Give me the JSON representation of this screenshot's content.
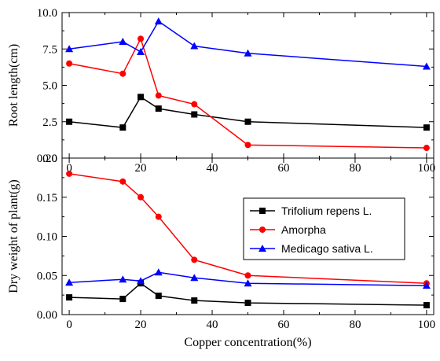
{
  "chart_data": [
    {
      "type": "line",
      "xlabel": "",
      "ylabel": "Root length(cm)",
      "xlim": [
        -2,
        102
      ],
      "ylim": [
        0,
        10
      ],
      "xticks": [
        0,
        20,
        40,
        60,
        80,
        100
      ],
      "yticks": [
        0.0,
        2.5,
        5.0,
        7.5,
        10.0
      ],
      "yticklabels": [
        "0.0",
        "2.5",
        "5.0",
        "7.5",
        "10.0"
      ],
      "xticklabels": [
        "0",
        "20",
        "40",
        "60",
        "80",
        "100"
      ],
      "x": [
        0,
        15,
        20,
        25,
        35,
        50,
        100
      ],
      "series": [
        {
          "name": "Trifolium repens L.",
          "color": "#000000",
          "marker": "square",
          "values": [
            2.5,
            2.1,
            4.2,
            3.4,
            3.0,
            2.5,
            2.1
          ]
        },
        {
          "name": "Amorpha",
          "color": "#ff0000",
          "marker": "circle",
          "values": [
            6.5,
            5.8,
            8.2,
            4.3,
            3.7,
            0.9,
            0.7
          ]
        },
        {
          "name": "Medicago sativa L.",
          "color": "#0000ff",
          "marker": "triangle",
          "values": [
            7.5,
            8.0,
            7.3,
            9.4,
            7.7,
            7.2,
            6.3
          ]
        }
      ]
    },
    {
      "type": "line",
      "xlabel": "Copper concentration(%)",
      "ylabel": "Dry weight of plant(g)",
      "xlim": [
        -2,
        102
      ],
      "ylim": [
        0,
        0.2
      ],
      "xticks": [
        0,
        20,
        40,
        60,
        80,
        100
      ],
      "yticks": [
        0.0,
        0.05,
        0.1,
        0.15,
        0.2
      ],
      "yticklabels": [
        "0.00",
        "0.05",
        "0.10",
        "0.15",
        "0.20"
      ],
      "xticklabels": [
        "0",
        "20",
        "40",
        "60",
        "80",
        "100"
      ],
      "legend": "inside right",
      "x": [
        0,
        15,
        20,
        25,
        35,
        50,
        100
      ],
      "series": [
        {
          "name": "Trifolium repens L.",
          "color": "#000000",
          "marker": "square",
          "values": [
            0.022,
            0.02,
            0.04,
            0.024,
            0.018,
            0.015,
            0.012
          ]
        },
        {
          "name": "Amorpha",
          "color": "#ff0000",
          "marker": "circle",
          "values": [
            0.18,
            0.17,
            0.15,
            0.125,
            0.07,
            0.05,
            0.04
          ]
        },
        {
          "name": "Medicago sativa L.",
          "color": "#0000ff",
          "marker": "triangle",
          "values": [
            0.041,
            0.045,
            0.043,
            0.054,
            0.047,
            0.04,
            0.037
          ]
        }
      ]
    }
  ]
}
